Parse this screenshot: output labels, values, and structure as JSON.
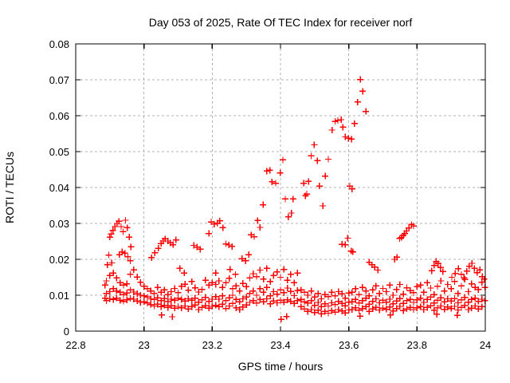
{
  "title": "Day 053 of 2025, Rate Of TEC Index for receiver norf",
  "chart_data": {
    "type": "scatter",
    "title": "Day 053 of 2025, Rate Of TEC Index for receiver norf",
    "xlabel": "GPS time / hours",
    "ylabel": "ROTI / TECUs",
    "xlim": [
      22.8,
      24
    ],
    "ylim": [
      0,
      0.08
    ],
    "xticks": [
      22.8,
      23,
      23.2,
      23.4,
      23.6,
      23.8,
      24
    ],
    "xtick_labels": [
      "22.8",
      "23",
      "23.2",
      "23.4",
      "23.6",
      "23.8",
      "24"
    ],
    "yticks": [
      0,
      0.01,
      0.02,
      0.03,
      0.04,
      0.05,
      0.06,
      0.07,
      0.08
    ],
    "ytick_labels": [
      "0",
      "0.01",
      "0.02",
      "0.03",
      "0.04",
      "0.05",
      "0.06",
      "0.07",
      "0.08"
    ],
    "grid": true,
    "legend": "none",
    "marker": "plus",
    "marker_color": "#ff0000",
    "grid_color": "#b3b3b3",
    "axis_color": "#000000",
    "series_name": "ROTI",
    "band_series": {
      "comment": "dense low-level noise band; t = t0 + i*dt hours, value = raw * unit TECU",
      "t0": 22.89,
      "dt": 0.01,
      "unit": 0.0001,
      "traces": [
        [
          85,
          90,
          88,
          92,
          86,
          83,
          87,
          91,
          89,
          84,
          80,
          82,
          78,
          74,
          70,
          75,
          68,
          72,
          66,
          71,
          64,
          69,
          65,
          70,
          62,
          68,
          73,
          60,
          66,
          71,
          64,
          69,
          72,
          68,
          75,
          63,
          70,
          77,
          65,
          60,
          67,
          73,
          80,
          85,
          78,
          88,
          82,
          90,
          76,
          84,
          79,
          86,
          81,
          87,
          83,
          77,
          85,
          68,
          62,
          55,
          60,
          52,
          58,
          48,
          55,
          50,
          57,
          53,
          60,
          56,
          51,
          59,
          60,
          65,
          58,
          63,
          68,
          55,
          62,
          66,
          59,
          64,
          61,
          67,
          56,
          63,
          69,
          57,
          62,
          66,
          60,
          65,
          68,
          60,
          66,
          71,
          58,
          65,
          70,
          61,
          67,
          63,
          69,
          59,
          66,
          72,
          60,
          64,
          70,
          62,
          68
        ],
        [
          105,
          110,
          118,
          112,
          108,
          102,
          106,
          115,
          109,
          104,
          100,
          98,
          95,
          90,
          88,
          93,
          85,
          91,
          83,
          89,
          86,
          92,
          88,
          84,
          90,
          86,
          92,
          81,
          87,
          94,
          83,
          89,
          96,
          89,
          98,
          85,
          93,
          100,
          88,
          82,
          90,
          95,
          105,
          112,
          100,
          118,
          108,
          122,
          98,
          110,
          103,
          115,
          107,
          120,
          111,
          99,
          113,
          88,
          82,
          78,
          85,
          72,
          80,
          68,
          76,
          70,
          79,
          74,
          83,
          77,
          71,
          81,
          82,
          88,
          78,
          85,
          92,
          75,
          83,
          90,
          79,
          86,
          81,
          89,
          76,
          84,
          91,
          77,
          85,
          88,
          80,
          87,
          92,
          80,
          88,
          95,
          78,
          86,
          93,
          82,
          90,
          84,
          91,
          79,
          87,
          94,
          81,
          88,
          92,
          83,
          89
        ],
        [
          140,
          155,
          162,
          148,
          135,
          128,
          132,
          158,
          171,
          151,
          136,
          125,
          118,
          112,
          105,
          122,
          108,
          115,
          102,
          110,
          119,
          107,
          125,
          131,
          114,
          138,
          121,
          109,
          116,
          142,
          128,
          135,
          130,
          140,
          122,
          135,
          147,
          118,
          126,
          112,
          133,
          124,
          148,
          160,
          152,
          170,
          145,
          175,
          138,
          155,
          165,
          150,
          172,
          142,
          158,
          135,
          162,
          115,
          108,
          100,
          112,
          95,
          105,
          90,
          102,
          96,
          108,
          98,
          110,
          104,
          92,
          106,
          108,
          118,
          102,
          122,
          112,
          98,
          115,
          126,
          105,
          119,
          110,
          128,
          100,
          116,
          130,
          103,
          121,
          113,
          107,
          124,
          128,
          108,
          135,
          120,
          102,
          125,
          140,
          112,
          130,
          118,
          138,
          105,
          126,
          144,
          110,
          132,
          122,
          116,
          136
        ]
      ]
    },
    "points": [
      [
        22.886,
        0.0092
      ],
      [
        22.886,
        0.0128
      ],
      [
        22.893,
        0.0185
      ],
      [
        22.897,
        0.0212
      ],
      [
        22.9,
        0.0262
      ],
      [
        22.904,
        0.0271
      ],
      [
        22.909,
        0.0281
      ],
      [
        22.915,
        0.0291
      ],
      [
        22.921,
        0.03
      ],
      [
        22.927,
        0.0306
      ],
      [
        22.933,
        0.0291
      ],
      [
        22.939,
        0.0277
      ],
      [
        22.946,
        0.0309
      ],
      [
        22.951,
        0.0288
      ],
      [
        22.957,
        0.0262
      ],
      [
        22.962,
        0.0235
      ],
      [
        22.906,
        0.019
      ],
      [
        22.928,
        0.0213
      ],
      [
        22.936,
        0.0221
      ],
      [
        22.944,
        0.0217
      ],
      [
        22.953,
        0.0207
      ],
      [
        22.96,
        0.0196
      ],
      [
        23.022,
        0.0205
      ],
      [
        23.032,
        0.0218
      ],
      [
        23.042,
        0.0231
      ],
      [
        23.05,
        0.0244
      ],
      [
        23.056,
        0.0251
      ],
      [
        23.062,
        0.0257
      ],
      [
        23.07,
        0.0251
      ],
      [
        23.077,
        0.0246
      ],
      [
        23.085,
        0.0241
      ],
      [
        23.094,
        0.0254
      ],
      [
        23.105,
        0.0175
      ],
      [
        23.118,
        0.0162
      ],
      [
        23.146,
        0.0239
      ],
      [
        23.155,
        0.0234
      ],
      [
        23.165,
        0.0228
      ],
      [
        23.052,
        0.0045
      ],
      [
        23.083,
        0.004
      ],
      [
        23.19,
        0.0272
      ],
      [
        23.197,
        0.0304
      ],
      [
        23.206,
        0.0298
      ],
      [
        23.215,
        0.0301
      ],
      [
        23.222,
        0.0307
      ],
      [
        23.231,
        0.0288
      ],
      [
        23.24,
        0.0243
      ],
      [
        23.249,
        0.024
      ],
      [
        23.258,
        0.0236
      ],
      [
        23.21,
        0.0162
      ],
      [
        23.252,
        0.0172
      ],
      [
        23.268,
        0.0158
      ],
      [
        23.287,
        0.0202
      ],
      [
        23.298,
        0.0196
      ],
      [
        23.307,
        0.0213
      ],
      [
        23.314,
        0.0268
      ],
      [
        23.323,
        0.0263
      ],
      [
        23.333,
        0.0308
      ],
      [
        23.34,
        0.0289
      ],
      [
        23.349,
        0.0352
      ],
      [
        23.36,
        0.0446
      ],
      [
        23.369,
        0.0448
      ],
      [
        23.375,
        0.0416
      ],
      [
        23.386,
        0.0412
      ],
      [
        23.399,
        0.0441
      ],
      [
        23.407,
        0.0477
      ],
      [
        23.414,
        0.0368
      ],
      [
        23.423,
        0.0318
      ],
      [
        23.432,
        0.0329
      ],
      [
        23.437,
        0.0368
      ],
      [
        23.402,
        0.0033
      ],
      [
        23.418,
        0.0041
      ],
      [
        23.468,
        0.0412
      ],
      [
        23.473,
        0.0377
      ],
      [
        23.477,
        0.0382
      ],
      [
        23.482,
        0.0417
      ],
      [
        23.49,
        0.0488
      ],
      [
        23.499,
        0.0519
      ],
      [
        23.508,
        0.0475
      ],
      [
        23.514,
        0.0404
      ],
      [
        23.524,
        0.0349
      ],
      [
        23.531,
        0.0432
      ],
      [
        23.54,
        0.0479
      ],
      [
        23.551,
        0.056
      ],
      [
        23.56,
        0.0584
      ],
      [
        23.568,
        0.0587
      ],
      [
        23.578,
        0.0589
      ],
      [
        23.583,
        0.0568
      ],
      [
        23.59,
        0.0541
      ],
      [
        23.599,
        0.0537
      ],
      [
        23.608,
        0.0535
      ],
      [
        23.617,
        0.0578
      ],
      [
        23.626,
        0.0638
      ],
      [
        23.634,
        0.0701
      ],
      [
        23.641,
        0.0668
      ],
      [
        23.65,
        0.0612
      ],
      [
        23.58,
        0.0242
      ],
      [
        23.59,
        0.0241
      ],
      [
        23.597,
        0.0259
      ],
      [
        23.603,
        0.0404
      ],
      [
        23.61,
        0.0396
      ],
      [
        23.607,
        0.0223
      ],
      [
        23.612,
        0.0221
      ],
      [
        23.66,
        0.0192
      ],
      [
        23.668,
        0.0185
      ],
      [
        23.676,
        0.0178
      ],
      [
        23.685,
        0.017
      ],
      [
        23.633,
        0.0042
      ],
      [
        23.722,
        0.0045
      ],
      [
        23.734,
        0.02
      ],
      [
        23.741,
        0.0206
      ],
      [
        23.749,
        0.0258
      ],
      [
        23.754,
        0.0261
      ],
      [
        23.76,
        0.0266
      ],
      [
        23.764,
        0.0272
      ],
      [
        23.769,
        0.0279
      ],
      [
        23.776,
        0.0287
      ],
      [
        23.784,
        0.0297
      ],
      [
        23.79,
        0.0293
      ],
      [
        23.843,
        0.0168
      ],
      [
        23.85,
        0.0183
      ],
      [
        23.856,
        0.0194
      ],
      [
        23.862,
        0.0188
      ],
      [
        23.869,
        0.0177
      ],
      [
        23.876,
        0.0166
      ],
      [
        23.858,
        0.0047
      ],
      [
        23.902,
        0.015
      ],
      [
        23.912,
        0.0161
      ],
      [
        23.921,
        0.0174
      ],
      [
        23.93,
        0.0158
      ],
      [
        23.938,
        0.0148
      ],
      [
        23.946,
        0.0167
      ],
      [
        23.953,
        0.0181
      ],
      [
        23.961,
        0.0189
      ],
      [
        23.968,
        0.0175
      ],
      [
        23.976,
        0.0163
      ],
      [
        23.984,
        0.0171
      ],
      [
        23.991,
        0.0152
      ],
      [
        23.997,
        0.0145
      ],
      [
        23.918,
        0.0044
      ],
      [
        23.999,
        0.0085
      ],
      [
        23.999,
        0.0122
      ]
    ]
  }
}
